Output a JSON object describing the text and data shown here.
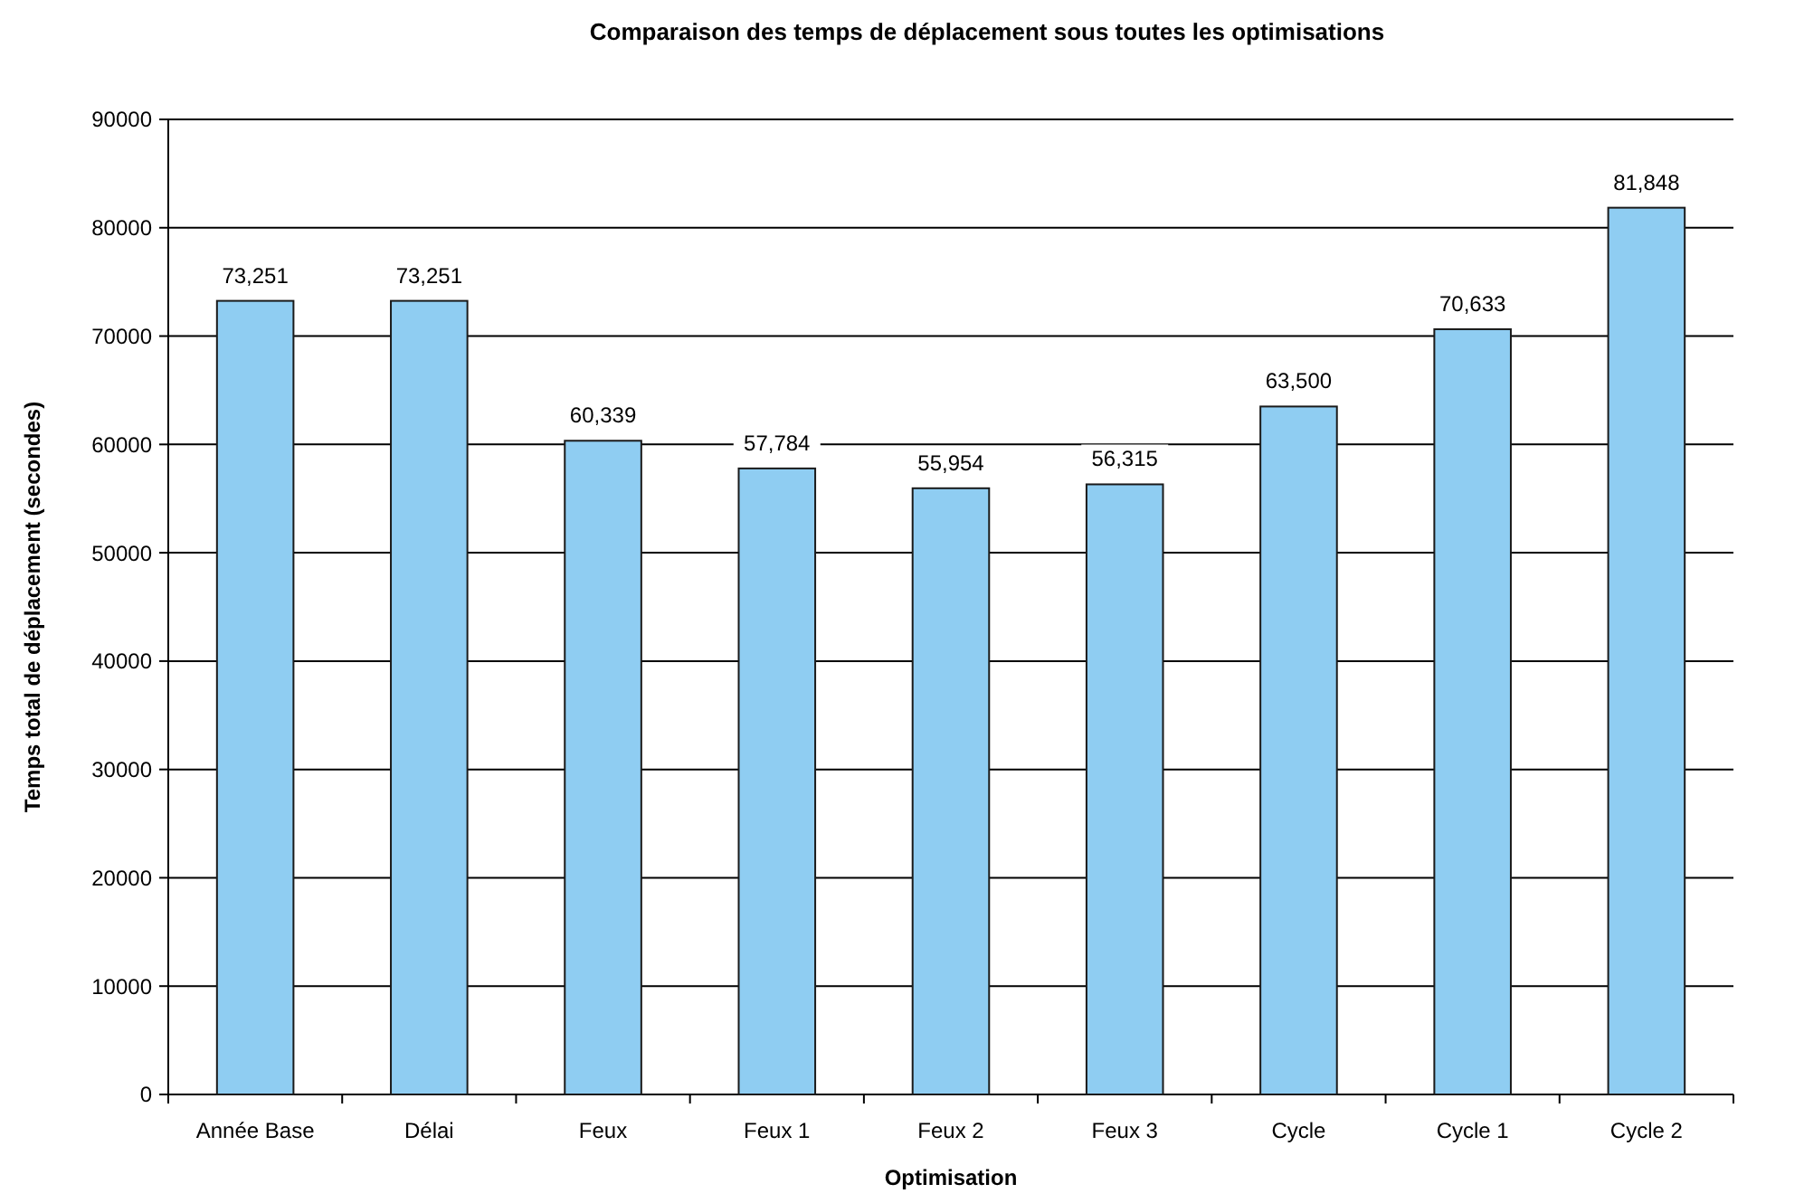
{
  "chart_data": {
    "type": "bar",
    "title": "Comparaison des temps de déplacement sous toutes les optimisations",
    "xlabel": "Optimisation",
    "ylabel": "Temps total de déplacement (secondes)",
    "categories": [
      "Année Base",
      "Délai",
      "Feux",
      "Feux 1",
      "Feux 2",
      "Feux 3",
      "Cycle",
      "Cycle 1",
      "Cycle 2"
    ],
    "values": [
      73251,
      73251,
      60339,
      57784,
      55954,
      56315,
      63500,
      70633,
      81848
    ],
    "value_labels": [
      "73,251",
      "73,251",
      "60,339",
      "57,784",
      "55,954",
      "56,315",
      "63,500",
      "70,633",
      "81,848"
    ],
    "color": "#8fcdf2",
    "ylim": [
      0,
      90000
    ],
    "yticks": [
      0,
      10000,
      20000,
      30000,
      40000,
      50000,
      60000,
      70000,
      80000,
      90000
    ],
    "grid": "y"
  }
}
